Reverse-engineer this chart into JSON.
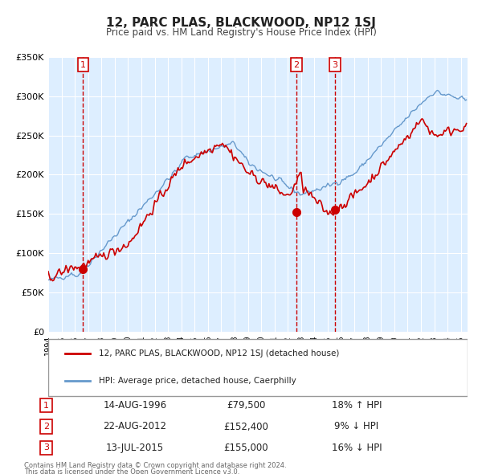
{
  "title": "12, PARC PLAS, BLACKWOOD, NP12 1SJ",
  "subtitle": "Price paid vs. HM Land Registry's House Price Index (HPI)",
  "legend_line1": "12, PARC PLAS, BLACKWOOD, NP12 1SJ (detached house)",
  "legend_line2": "HPI: Average price, detached house, Caerphilly",
  "red_color": "#cc0000",
  "blue_color": "#6699cc",
  "bg_color": "#ddeeff",
  "grid_color": "#ffffff",
  "sale_color": "#cc0000",
  "transactions": [
    {
      "num": 1,
      "date": "14-AUG-1996",
      "price": 79500,
      "pct": "18%",
      "dir": "↑",
      "year": 1996.62
    },
    {
      "num": 2,
      "date": "22-AUG-2012",
      "price": 152400,
      "pct": "9%",
      "dir": "↓",
      "year": 2012.64
    },
    {
      "num": 3,
      "date": "13-JUL-2015",
      "price": 155000,
      "pct": "16%",
      "dir": "↓",
      "year": 2015.54
    }
  ],
  "footer_line1": "Contains HM Land Registry data © Crown copyright and database right 2024.",
  "footer_line2": "This data is licensed under the Open Government Licence v3.0.",
  "ylim": [
    0,
    350000
  ],
  "xlim_start": 1994.0,
  "xlim_end": 2025.5,
  "ytick_labels": [
    "£0",
    "£50K",
    "£100K",
    "£150K",
    "£200K",
    "£250K",
    "£300K",
    "£350K"
  ],
  "ytick_values": [
    0,
    50000,
    100000,
    150000,
    200000,
    250000,
    300000,
    350000
  ]
}
